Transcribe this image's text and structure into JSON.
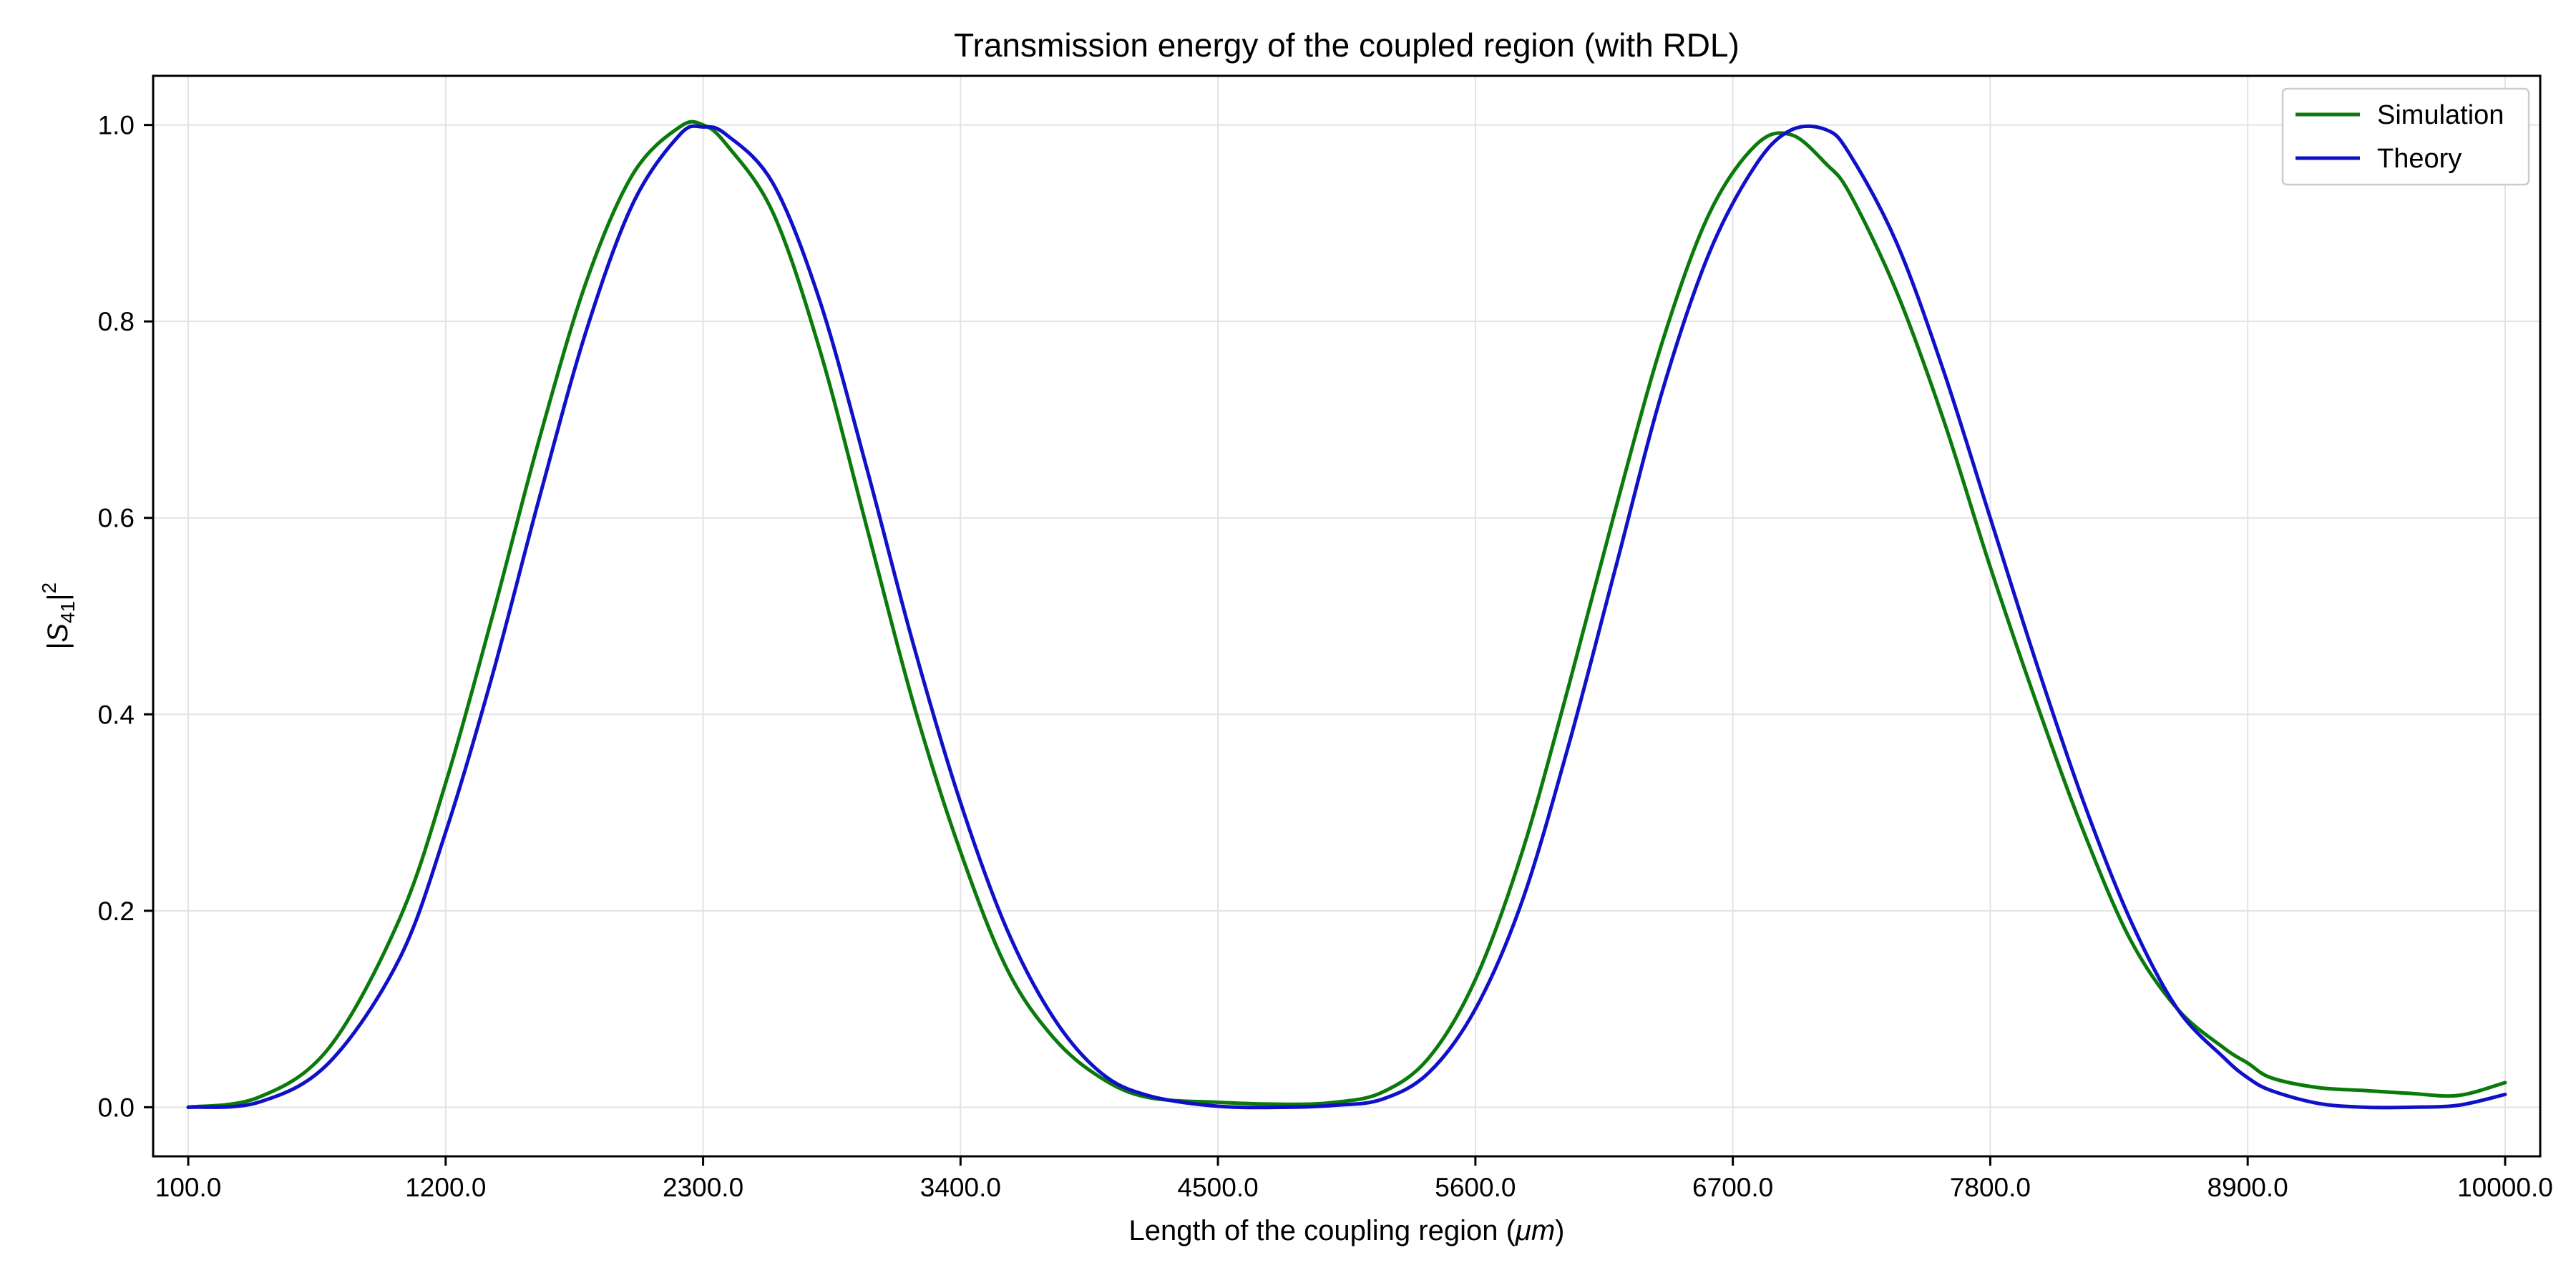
{
  "chart_data": {
    "type": "line",
    "title": "Transmission energy of the coupled region (with RDL)",
    "xlabel_prefix": "Length of the coupling region (",
    "xlabel_unit": "μm",
    "xlabel_suffix": ")",
    "ylabel_main": "|S",
    "ylabel_sub": "41",
    "ylabel_end": "|",
    "ylabel_sup": "2",
    "xlim": [
      -50,
      10150
    ],
    "ylim": [
      -0.05,
      1.05
    ],
    "xticks": [
      100,
      1200,
      2300,
      3400,
      4500,
      5600,
      6700,
      7800,
      8900,
      10000
    ],
    "xtick_labels": [
      "100.0",
      "1200.0",
      "2300.0",
      "3400.0",
      "4500.0",
      "5600.0",
      "6700.0",
      "7800.0",
      "8900.0",
      "10000.0"
    ],
    "yticks": [
      0.0,
      0.2,
      0.4,
      0.6,
      0.8,
      1.0
    ],
    "ytick_labels": [
      "0.0",
      "0.2",
      "0.4",
      "0.6",
      "0.8",
      "1.0"
    ],
    "grid": true,
    "legend_position": "top-right",
    "series": [
      {
        "name": "Simulation",
        "color": "#0a7a0a",
        "x": [
          100,
          400,
          700,
          1000,
          1200,
          1400,
          1600,
          1800,
          2000,
          2200,
          2300,
          2400,
          2600,
          2800,
          3000,
          3200,
          3400,
          3600,
          3800,
          4000,
          4200,
          4500,
          4800,
          5000,
          5200,
          5400,
          5600,
          5800,
          6000,
          6200,
          6400,
          6600,
          6800,
          6950,
          7100,
          7200,
          7400,
          7600,
          7800,
          8000,
          8200,
          8400,
          8600,
          8800,
          8900,
          9000,
          9200,
          9400,
          9600,
          9800,
          10000
        ],
        "y": [
          0.0,
          0.01,
          0.06,
          0.19,
          0.33,
          0.5,
          0.68,
          0.84,
          0.95,
          0.998,
          1.0,
          0.98,
          0.91,
          0.77,
          0.59,
          0.41,
          0.26,
          0.14,
          0.07,
          0.03,
          0.01,
          0.005,
          0.003,
          0.005,
          0.015,
          0.05,
          0.13,
          0.26,
          0.43,
          0.61,
          0.78,
          0.91,
          0.98,
          0.99,
          0.96,
          0.93,
          0.83,
          0.7,
          0.55,
          0.41,
          0.28,
          0.17,
          0.1,
          0.06,
          0.045,
          0.03,
          0.02,
          0.017,
          0.014,
          0.012,
          0.025
        ]
      },
      {
        "name": "Theory",
        "color": "#1010c8",
        "x": [
          100,
          400,
          700,
          1000,
          1200,
          1400,
          1600,
          1800,
          2000,
          2200,
          2300,
          2400,
          2600,
          2800,
          3000,
          3200,
          3400,
          3600,
          3800,
          4000,
          4200,
          4500,
          4800,
          5000,
          5200,
          5400,
          5600,
          5800,
          6000,
          6200,
          6400,
          6600,
          6800,
          6950,
          7100,
          7200,
          7400,
          7600,
          7800,
          8000,
          8200,
          8400,
          8600,
          8800,
          8900,
          9000,
          9200,
          9400,
          9600,
          9800,
          10000
        ],
        "y": [
          0.0,
          0.005,
          0.045,
          0.15,
          0.28,
          0.44,
          0.62,
          0.79,
          0.92,
          0.99,
          0.998,
          0.99,
          0.94,
          0.82,
          0.65,
          0.47,
          0.31,
          0.18,
          0.09,
          0.035,
          0.012,
          0.001,
          0.0,
          0.002,
          0.008,
          0.035,
          0.1,
          0.21,
          0.37,
          0.55,
          0.73,
          0.87,
          0.96,
          0.995,
          0.995,
          0.97,
          0.88,
          0.75,
          0.6,
          0.45,
          0.31,
          0.19,
          0.1,
          0.05,
          0.03,
          0.017,
          0.004,
          0.0,
          0.0,
          0.002,
          0.013
        ]
      }
    ]
  }
}
